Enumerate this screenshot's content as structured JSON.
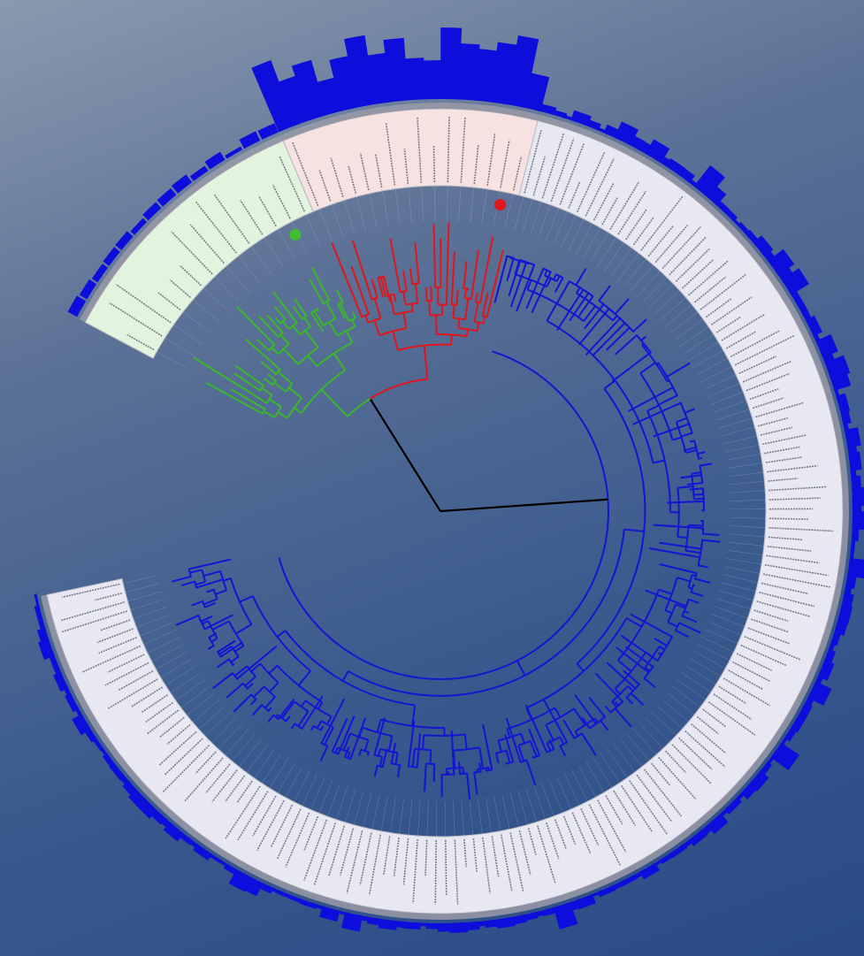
{
  "tree": {
    "groups": [
      {
        "name": "green",
        "color": "#39b82a",
        "band_color": "#e2f3de",
        "leaf_count": 14
      },
      {
        "name": "red",
        "color": "#e0161c",
        "band_color": "#f7e2e2",
        "leaf_count": 16
      },
      {
        "name": "blue",
        "color": "#1414d2",
        "band_color": "#e8e8f2",
        "leaf_count": 150
      }
    ],
    "markers": [
      {
        "group": "green",
        "color": "#3fbf2f"
      },
      {
        "group": "red",
        "color": "#e0161c"
      }
    ],
    "bar_color": "#0d0ddc"
  }
}
